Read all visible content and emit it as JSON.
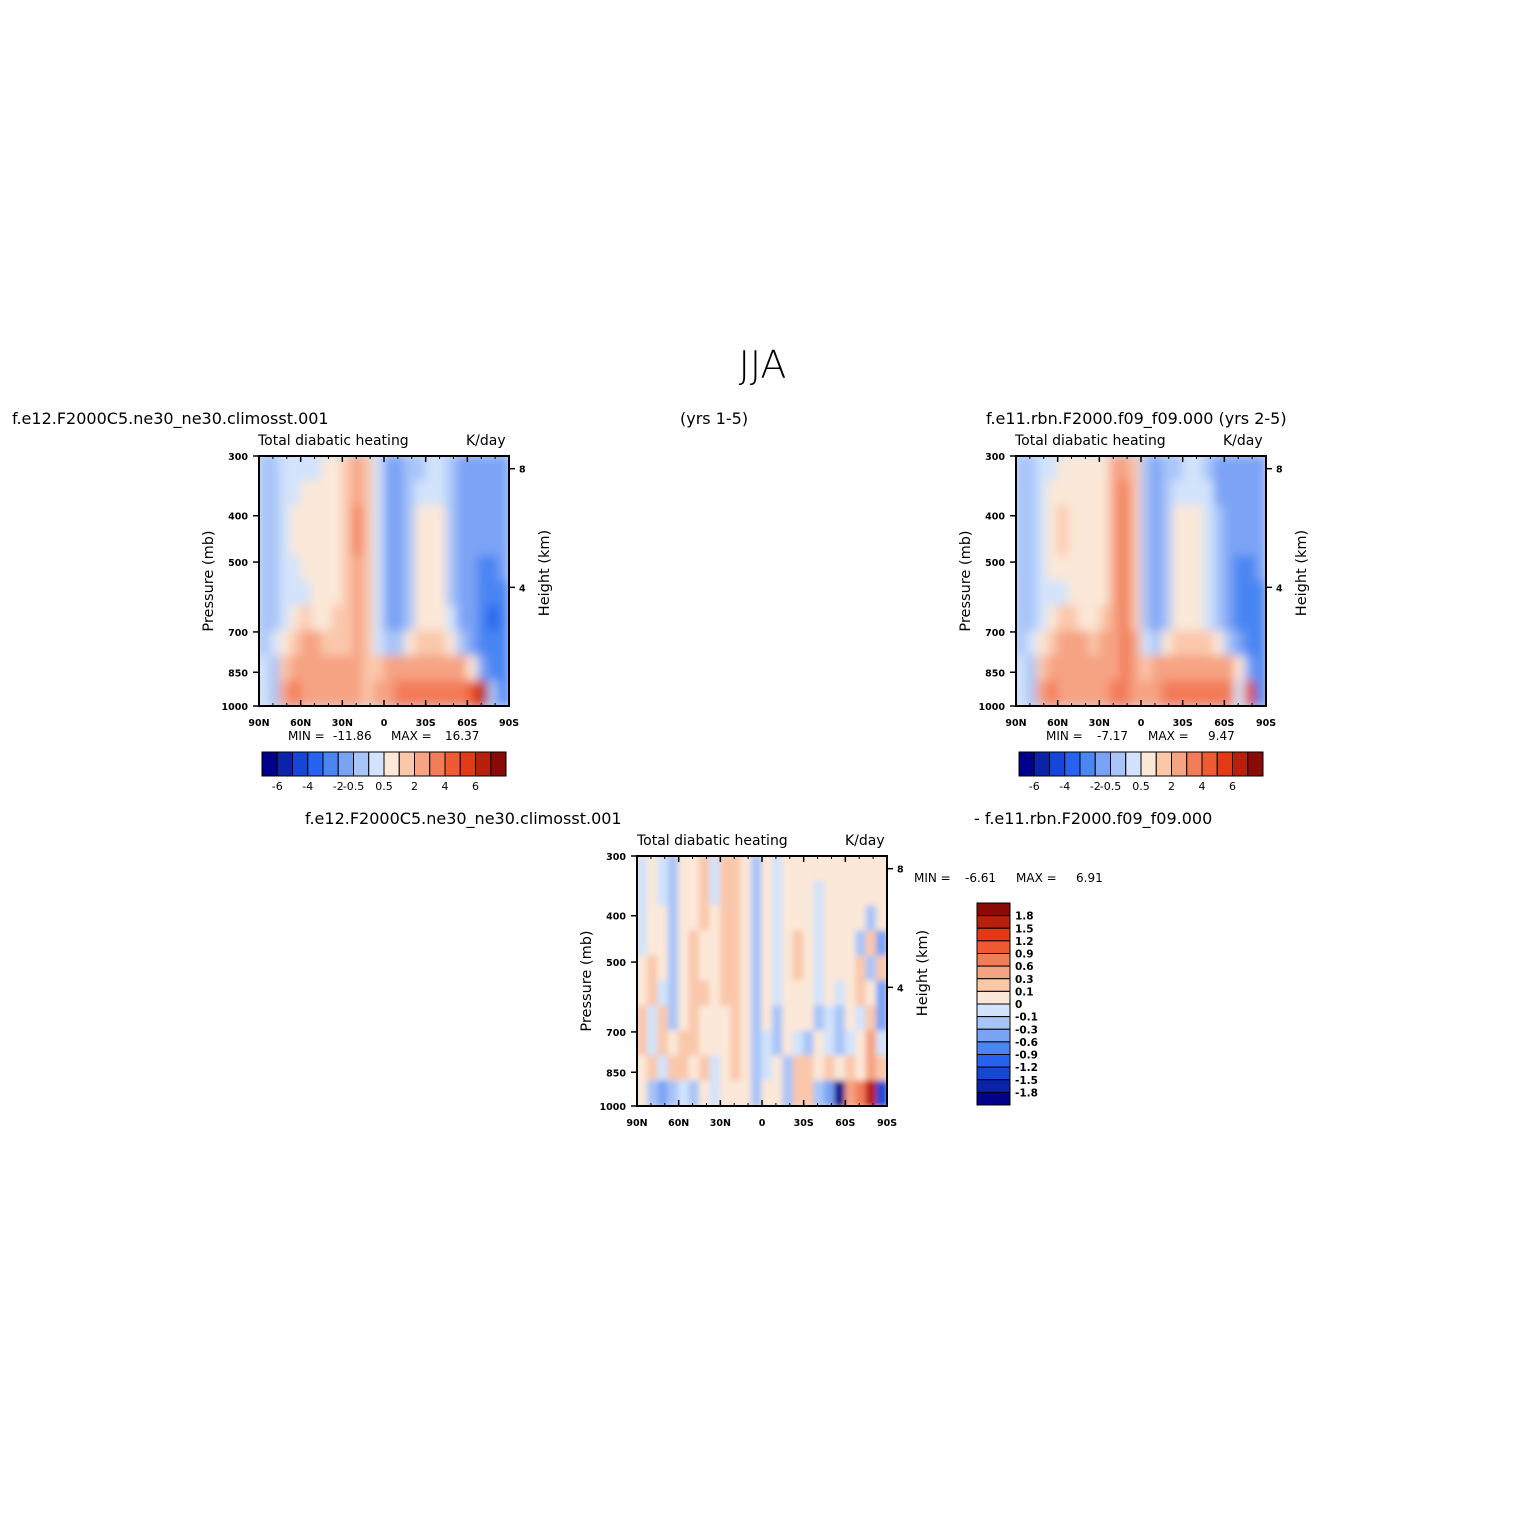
{
  "title": "JJA",
  "case1": "f.e12.F2000C5.ne30_ne30.climosst.001",
  "years1": "(yrs 1-5)",
  "case2": "f.e11.rbn.F2000.f09_f09.000  (yrs 2-5)",
  "diff_case1": "f.e12.F2000C5.ne30_ne30.climosst.001",
  "diff_case2": "- f.e11.rbn.F2000.f09_f09.000",
  "chart_data": [
    {
      "type": "heatmap",
      "id": "panel-1",
      "variable": "Total diabatic heating",
      "units": "K/day",
      "xlabel": "",
      "ylabel": "Pressure (mb)",
      "ylabel_right": "Height (km)",
      "x_ticks": [
        "90N",
        "60N",
        "30N",
        "0",
        "30S",
        "60S",
        "90S"
      ],
      "y_ticks": [
        "300",
        "400",
        "500",
        "700",
        "850",
        "1000"
      ],
      "height_ticks": [
        "8",
        "4"
      ],
      "ylim": [
        1000,
        300
      ],
      "min_label": "MIN =",
      "min": "-11.86",
      "max_label": "MAX =",
      "max": "16.37",
      "colorbar": {
        "orientation": "horizontal",
        "labels": [
          "-6",
          "-4",
          "-2",
          "-0.5",
          "0.5",
          "2",
          "4",
          "6"
        ],
        "colors": [
          "#00008a",
          "#0a23a8",
          "#1446d8",
          "#2862f0",
          "#4a85f2",
          "#7ba3f5",
          "#a8c5f8",
          "#d2e3fb",
          "#fbe8d8",
          "#fac7ab",
          "#f6a383",
          "#f37c58",
          "#ef5a33",
          "#e23a14",
          "#b81f0c",
          "#8a0a05"
        ]
      },
      "field": [
        [
          -0.6,
          -0.6,
          -0.4,
          -0.1,
          -0.1,
          -0.1,
          0.2,
          0.2,
          0.6,
          1.2,
          0.6,
          -0.5,
          -1.5,
          -2.0,
          -0.8,
          -0.6,
          -0.4,
          -0.2,
          -0.6,
          -1.5,
          -1.5,
          -1.5,
          -1.5,
          -1.5
        ],
        [
          -0.6,
          -0.6,
          -0.3,
          -0.1,
          0.1,
          0.2,
          0.2,
          0.2,
          0.6,
          1.5,
          0.6,
          -0.5,
          -1.5,
          -2.0,
          -0.6,
          -0.4,
          -0.3,
          -0.2,
          -0.6,
          -1.5,
          -1.5,
          -1.5,
          -1.5,
          -1.5
        ],
        [
          -0.6,
          -0.6,
          -0.3,
          0.1,
          0.2,
          0.3,
          0.2,
          0.2,
          0.6,
          2.0,
          0.6,
          -0.5,
          -1.5,
          -2.0,
          -0.6,
          0.1,
          0.2,
          0.1,
          -0.6,
          -1.5,
          -1.5,
          -1.5,
          -2.0,
          -1.5
        ],
        [
          -0.6,
          -0.6,
          -0.3,
          0.1,
          0.2,
          0.2,
          0.2,
          0.2,
          0.6,
          2.0,
          0.6,
          -0.5,
          -2.0,
          -2.0,
          -0.6,
          0.1,
          0.2,
          0.1,
          -0.6,
          -1.5,
          -1.5,
          -1.5,
          -2.0,
          -1.5
        ],
        [
          -0.6,
          -0.6,
          -0.3,
          -0.1,
          0.2,
          0.2,
          0.2,
          0.2,
          0.6,
          1.5,
          0.6,
          -0.5,
          -2.0,
          -2.0,
          -0.6,
          0.1,
          0.2,
          0.1,
          -0.6,
          -1.5,
          -1.5,
          -2.5,
          -3.0,
          -2.0
        ],
        [
          -0.6,
          -0.6,
          -0.3,
          -0.1,
          -0.1,
          0.2,
          0.2,
          0.2,
          0.6,
          1.5,
          0.6,
          -0.5,
          -2.0,
          -2.0,
          -0.6,
          0.1,
          0.2,
          0.1,
          -0.6,
          -1.5,
          -2.0,
          -3.0,
          -3.0,
          -2.5
        ],
        [
          -0.6,
          -0.6,
          -0.1,
          0.2,
          0.6,
          0.2,
          0.2,
          0.6,
          0.6,
          1.5,
          0.6,
          -0.5,
          -2.0,
          -1.5,
          -0.6,
          0.1,
          0.2,
          0.1,
          -0.3,
          -1.5,
          -2.0,
          -3.0,
          -3.5,
          -3.0
        ],
        [
          -0.6,
          -0.3,
          0.2,
          0.6,
          1.0,
          1.0,
          0.6,
          0.6,
          0.6,
          1.5,
          0.6,
          -0.1,
          -0.6,
          -0.6,
          0.2,
          0.6,
          0.6,
          0.6,
          0.2,
          -0.6,
          -1.5,
          -3.0,
          -3.0,
          -3.0
        ],
        [
          -0.3,
          -0.6,
          0.6,
          1.5,
          1.0,
          1.0,
          1.0,
          1.0,
          1.0,
          1.5,
          0.6,
          0.6,
          1.0,
          1.5,
          1.5,
          1.5,
          1.5,
          1.5,
          1.5,
          1.0,
          0.2,
          -1.5,
          -3.0,
          -3.0
        ],
        [
          -0.3,
          -0.6,
          1.5,
          2.0,
          1.5,
          1.5,
          1.0,
          1.5,
          1.5,
          1.5,
          0.6,
          1.0,
          1.5,
          2.0,
          2.0,
          2.0,
          2.0,
          2.0,
          2.0,
          2.5,
          3.5,
          5.0,
          -0.6,
          -3.0
        ]
      ]
    },
    {
      "type": "heatmap",
      "id": "panel-2",
      "variable": "Total diabatic heating",
      "units": "K/day",
      "xlabel": "",
      "ylabel": "Pressure (mb)",
      "ylabel_right": "Height (km)",
      "x_ticks": [
        "90N",
        "60N",
        "30N",
        "0",
        "30S",
        "60S",
        "90S"
      ],
      "y_ticks": [
        "300",
        "400",
        "500",
        "700",
        "850",
        "1000"
      ],
      "height_ticks": [
        "8",
        "4"
      ],
      "ylim": [
        1000,
        300
      ],
      "min_label": "MIN =",
      "min": "-7.17",
      "max_label": "MAX =",
      "max": "9.47",
      "colorbar": {
        "orientation": "horizontal",
        "labels": [
          "-6",
          "-4",
          "-2",
          "-0.5",
          "0.5",
          "2",
          "4",
          "6"
        ],
        "colors": [
          "#00008a",
          "#0a23a8",
          "#1446d8",
          "#2862f0",
          "#4a85f2",
          "#7ba3f5",
          "#a8c5f8",
          "#d2e3fb",
          "#fbe8d8",
          "#fac7ab",
          "#f6a383",
          "#f37c58",
          "#ef5a33",
          "#e23a14",
          "#b81f0c",
          "#8a0a05"
        ]
      },
      "field": [
        [
          -0.6,
          -0.6,
          -0.4,
          -0.1,
          0.1,
          0.2,
          0.2,
          0.2,
          0.2,
          1.0,
          1.5,
          0.6,
          -1.0,
          -1.5,
          -0.6,
          -0.6,
          -0.3,
          -0.3,
          -0.6,
          -1.5,
          -1.5,
          -1.5,
          -1.5,
          -1.5
        ],
        [
          -0.6,
          -0.6,
          -0.3,
          0.1,
          0.2,
          0.2,
          0.2,
          0.2,
          0.2,
          1.0,
          2.0,
          0.6,
          -1.0,
          -1.5,
          -0.6,
          -0.3,
          -0.1,
          -0.1,
          -0.3,
          -1.5,
          -1.5,
          -1.5,
          -1.5,
          -1.5
        ],
        [
          -0.6,
          -0.6,
          -0.3,
          0.1,
          0.6,
          0.2,
          0.2,
          0.2,
          0.2,
          1.0,
          2.0,
          0.6,
          -1.0,
          -1.5,
          -0.6,
          0.1,
          0.1,
          0.1,
          -0.3,
          -1.0,
          -1.5,
          -1.5,
          -1.5,
          -1.5
        ],
        [
          -0.6,
          -0.6,
          -0.3,
          0.2,
          0.6,
          0.2,
          0.2,
          0.2,
          0.2,
          1.0,
          2.5,
          0.6,
          -1.0,
          -1.5,
          -0.6,
          0.1,
          0.2,
          0.1,
          -0.3,
          -1.0,
          -1.5,
          -2.0,
          -2.0,
          -1.5
        ],
        [
          -0.6,
          -0.6,
          -0.3,
          0.1,
          0.2,
          0.2,
          0.2,
          0.2,
          0.2,
          1.0,
          2.0,
          0.6,
          -1.0,
          -1.5,
          -0.6,
          0.1,
          0.2,
          0.1,
          -0.3,
          -1.0,
          -1.5,
          -2.5,
          -2.5,
          -2.0
        ],
        [
          -0.6,
          -0.6,
          -0.3,
          -0.1,
          -0.1,
          0.2,
          0.2,
          0.2,
          0.2,
          1.0,
          2.0,
          0.6,
          -1.0,
          -1.5,
          -0.6,
          0.1,
          0.2,
          0.1,
          -0.3,
          -1.0,
          -1.5,
          -2.5,
          -3.0,
          -2.5
        ],
        [
          -0.6,
          -0.6,
          -0.1,
          0.2,
          0.6,
          0.6,
          0.2,
          0.2,
          0.6,
          1.5,
          2.0,
          0.6,
          -1.0,
          -1.5,
          -0.6,
          0.1,
          0.2,
          0.1,
          -0.3,
          -1.0,
          -1.5,
          -2.5,
          -3.0,
          -2.5
        ],
        [
          -0.6,
          -0.3,
          0.2,
          0.6,
          1.0,
          1.0,
          1.0,
          0.6,
          1.0,
          1.5,
          2.0,
          1.0,
          -0.1,
          -0.6,
          0.2,
          0.6,
          0.6,
          0.6,
          0.6,
          0.2,
          -0.6,
          -1.5,
          -2.5,
          -2.5
        ],
        [
          -0.3,
          -0.6,
          0.6,
          1.5,
          1.5,
          1.0,
          1.0,
          1.0,
          1.5,
          1.5,
          2.0,
          1.5,
          0.6,
          1.0,
          1.5,
          1.5,
          1.5,
          1.5,
          1.5,
          1.5,
          1.0,
          0.2,
          -1.5,
          -2.5
        ],
        [
          -0.3,
          -0.6,
          1.5,
          2.0,
          1.5,
          1.5,
          1.5,
          1.5,
          1.5,
          2.0,
          2.0,
          1.5,
          1.0,
          1.5,
          2.0,
          2.0,
          2.0,
          2.0,
          2.0,
          2.5,
          2.0,
          -0.1,
          4.0,
          -2.5
        ]
      ]
    },
    {
      "type": "heatmap",
      "id": "panel-diff",
      "variable": "Total diabatic heating",
      "units": "K/day",
      "xlabel": "",
      "ylabel": "Pressure (mb)",
      "ylabel_right": "Height (km)",
      "x_ticks": [
        "90N",
        "60N",
        "30N",
        "0",
        "30S",
        "60S",
        "90S"
      ],
      "y_ticks": [
        "300",
        "400",
        "500",
        "700",
        "850",
        "1000"
      ],
      "height_ticks": [
        "8",
        "4"
      ],
      "ylim": [
        1000,
        300
      ],
      "min_label": "MIN =",
      "min": "-6.61",
      "max_label": "MAX =",
      "max": "6.91",
      "colorbar": {
        "orientation": "vertical",
        "labels": [
          "1.8",
          "1.5",
          "1.2",
          "0.9",
          "0.6",
          "0.3",
          "0.1",
          "0",
          "-0.1",
          "-0.3",
          "-0.6",
          "-0.9",
          "-1.2",
          "-1.5",
          "-1.8"
        ],
        "colors": [
          "#8a0a05",
          "#b81f0c",
          "#e23a14",
          "#ef5a33",
          "#f37c58",
          "#f6a383",
          "#fac7ab",
          "#fbe8d8",
          "#d2e3fb",
          "#a8c5f8",
          "#7ba3f5",
          "#4a85f2",
          "#2862f0",
          "#1446d8",
          "#0a23a8",
          "#00008a"
        ]
      },
      "field": [
        [
          -0.05,
          0.05,
          -0.05,
          -0.3,
          0.05,
          0.05,
          0.2,
          -0.05,
          0.2,
          0.2,
          0.05,
          -0.2,
          0.05,
          -0.05,
          0.05,
          0.05,
          0.05,
          0.05,
          0.05,
          0.05,
          0.05,
          0.05,
          0.05,
          0.05
        ],
        [
          -0.05,
          0.05,
          -0.05,
          -0.3,
          0.05,
          0.05,
          0.2,
          -0.05,
          0.2,
          0.2,
          0.05,
          -0.2,
          0.05,
          -0.05,
          0.05,
          0.05,
          0.05,
          -0.05,
          0.05,
          0.05,
          0.05,
          0.05,
          0.05,
          0.05
        ],
        [
          -0.05,
          0.05,
          0.05,
          -0.2,
          0.05,
          0.05,
          0.2,
          0.05,
          0.2,
          0.2,
          0.05,
          -0.2,
          0.05,
          -0.05,
          0.05,
          0.05,
          0.05,
          -0.05,
          0.05,
          0.05,
          0.05,
          0.05,
          -0.2,
          0.05
        ],
        [
          -0.05,
          0.05,
          0.05,
          -0.2,
          0.05,
          0.2,
          0.05,
          0.05,
          0.2,
          0.2,
          0.05,
          -0.2,
          0.05,
          -0.05,
          0.05,
          0.2,
          0.05,
          -0.05,
          0.05,
          0.05,
          0.05,
          -0.2,
          0.2,
          -0.4
        ],
        [
          0.05,
          0.2,
          0.05,
          -0.2,
          0.05,
          0.2,
          0.05,
          0.05,
          0.2,
          0.2,
          0.05,
          -0.2,
          0.05,
          -0.05,
          0.05,
          0.2,
          0.05,
          -0.05,
          0.05,
          0.05,
          0.05,
          0.2,
          -0.2,
          0.2
        ],
        [
          0.05,
          0.2,
          -0.05,
          -0.2,
          0.05,
          0.2,
          0.2,
          0.05,
          0.2,
          0.2,
          0.05,
          -0.2,
          0.05,
          -0.05,
          0.05,
          0.05,
          0.05,
          -0.05,
          0.05,
          -0.05,
          0.05,
          0.2,
          0.05,
          -0.4
        ],
        [
          0.2,
          -0.05,
          0.2,
          -0.2,
          0.05,
          0.2,
          0.05,
          0.05,
          0.05,
          0.2,
          0.05,
          -0.2,
          0.05,
          -0.2,
          0.05,
          0.05,
          0.05,
          -0.2,
          -0.05,
          -0.2,
          0.05,
          -0.05,
          0.2,
          -0.4
        ],
        [
          0.2,
          -0.05,
          0.2,
          0.05,
          0.2,
          0.2,
          0.05,
          0.05,
          0.05,
          0.2,
          0.05,
          -0.2,
          -0.05,
          -0.2,
          0.05,
          -0.05,
          -0.2,
          0.05,
          -0.05,
          -0.2,
          -0.05,
          0.05,
          0.4,
          -0.05
        ],
        [
          0.05,
          0.2,
          -0.05,
          0.2,
          0.2,
          0.05,
          0.2,
          -0.05,
          0.05,
          0.2,
          0.05,
          -0.2,
          -0.05,
          0.05,
          -0.2,
          0.2,
          0.2,
          0.05,
          0.2,
          0.05,
          0.2,
          0.05,
          0.4,
          0.2
        ],
        [
          0.05,
          -0.2,
          -0.4,
          -0.2,
          -0.05,
          -0.2,
          0.05,
          -0.05,
          0.05,
          0.05,
          0.05,
          -0.2,
          0.05,
          0.05,
          -0.2,
          0.2,
          0.2,
          -0.2,
          -0.4,
          -2.0,
          0.4,
          0.6,
          1.5,
          -1.5
        ]
      ]
    }
  ]
}
